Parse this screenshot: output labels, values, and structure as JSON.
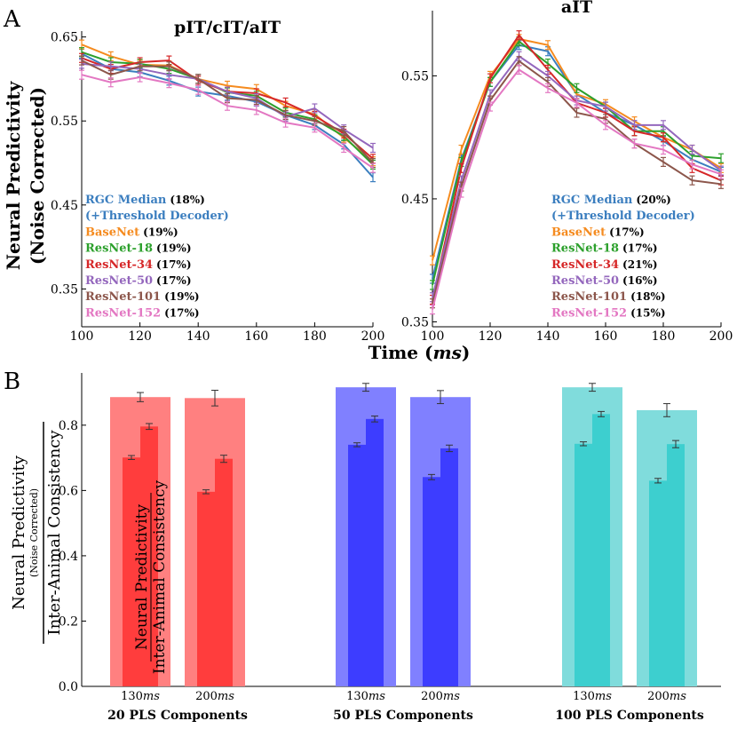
{
  "figure": {
    "panel_a_letter": "A",
    "panel_b_letter": "B",
    "panel_a_ylabel_line1": "Neural Predictivity",
    "panel_a_ylabel_line2": "(Noise Corrected)",
    "panel_a_xlabel_main": "Time (",
    "panel_a_xlabel_unit": "ms",
    "panel_a_xlabel_close": ")",
    "panel_b_ylabel_top": "Neural Predictivity",
    "panel_b_ylabel_sub": "(Noise Corrected)",
    "panel_b_ylabel_bottom": "Inter-Animal Consistency"
  },
  "colors": {
    "RGC Median": "#3b7ebf",
    "BaseNet": "#f58b1f",
    "ResNet-18": "#2ca02c",
    "ResNet-34": "#d62728",
    "ResNet-50": "#9467bd",
    "ResNet-101": "#8c564b",
    "ResNet-152": "#e377c2",
    "bar_red_light": "#ff8080",
    "bar_red_dark": "#ff3d3d",
    "bar_blue_light": "#8080ff",
    "bar_blue_dark": "#3d3dff",
    "bar_teal_light": "#80dcdc",
    "bar_teal_dark": "#3dcfcf"
  },
  "chart_data": [
    {
      "type": "line",
      "title": "pIT/cIT/aIT",
      "xlabel": "Time (ms)",
      "ylabel": "Neural Predictivity (Noise Corrected)",
      "x": [
        100,
        110,
        120,
        130,
        140,
        150,
        160,
        170,
        180,
        190,
        200
      ],
      "xlim": [
        100,
        200
      ],
      "ylim": [
        0.305,
        0.657
      ],
      "xticks": [
        "100",
        "120",
        "140",
        "160",
        "180",
        "200"
      ],
      "yticks": [
        "0.35",
        "0.45",
        "0.55",
        "0.65"
      ],
      "legend": [
        {
          "name": "RGC Median",
          "pct": "(18%)"
        },
        {
          "name": "(+Threshold Decoder)",
          "pct": ""
        },
        {
          "name": "BaseNet",
          "pct": "(19%)"
        },
        {
          "name": "ResNet-18",
          "pct": "(19%)"
        },
        {
          "name": "ResNet-34",
          "pct": "(17%)"
        },
        {
          "name": "ResNet-50",
          "pct": "(17%)"
        },
        {
          "name": "ResNet-101",
          "pct": "(19%)"
        },
        {
          "name": "ResNet-152",
          "pct": "(17%)"
        }
      ],
      "series": [
        {
          "name": "RGC Median",
          "values": [
            0.63,
            0.612,
            0.608,
            0.598,
            0.585,
            0.58,
            0.573,
            0.557,
            0.545,
            0.522,
            0.483
          ]
        },
        {
          "name": "BaseNet",
          "values": [
            0.641,
            0.627,
            0.617,
            0.616,
            0.6,
            0.592,
            0.588,
            0.568,
            0.558,
            0.53,
            0.502
          ]
        },
        {
          "name": "ResNet-18",
          "values": [
            0.632,
            0.62,
            0.618,
            0.612,
            0.6,
            0.584,
            0.58,
            0.56,
            0.552,
            0.532,
            0.498
          ]
        },
        {
          "name": "ResNet-34",
          "values": [
            0.625,
            0.612,
            0.62,
            0.622,
            0.598,
            0.585,
            0.583,
            0.572,
            0.556,
            0.535,
            0.505
          ]
        },
        {
          "name": "ResNet-50",
          "values": [
            0.618,
            0.615,
            0.612,
            0.605,
            0.6,
            0.585,
            0.577,
            0.555,
            0.565,
            0.54,
            0.518
          ]
        },
        {
          "name": "ResNet-101",
          "values": [
            0.622,
            0.605,
            0.615,
            0.615,
            0.6,
            0.577,
            0.575,
            0.557,
            0.55,
            0.538,
            0.5
          ]
        },
        {
          "name": "ResNet-152",
          "values": [
            0.605,
            0.596,
            0.602,
            0.595,
            0.587,
            0.568,
            0.563,
            0.548,
            0.542,
            0.518,
            0.494
          ]
        }
      ]
    },
    {
      "type": "line",
      "title": "aIT",
      "xlabel": "Time (ms)",
      "ylabel": "",
      "x": [
        100,
        110,
        120,
        130,
        140,
        150,
        160,
        170,
        180,
        190,
        200
      ],
      "xlim": [
        100,
        200
      ],
      "ylim": [
        0.346,
        0.603
      ],
      "xticks": [
        "100",
        "120",
        "140",
        "160",
        "180",
        "200"
      ],
      "yticks": [
        "0.35",
        "0.45",
        "0.55"
      ],
      "legend": [
        {
          "name": "RGC Median",
          "pct": "(20%)"
        },
        {
          "name": "(+Threshold Decoder)",
          "pct": ""
        },
        {
          "name": "BaseNet",
          "pct": "(17%)"
        },
        {
          "name": "ResNet-18",
          "pct": "(17%)"
        },
        {
          "name": "ResNet-34",
          "pct": "(21%)"
        },
        {
          "name": "ResNet-50",
          "pct": "(16%)"
        },
        {
          "name": "ResNet-101",
          "pct": "(18%)"
        },
        {
          "name": "ResNet-152",
          "pct": "(15%)"
        }
      ],
      "series": [
        {
          "name": "RGC Median",
          "values": [
            0.385,
            0.482,
            0.545,
            0.575,
            0.57,
            0.535,
            0.52,
            0.51,
            0.497,
            0.482,
            0.472
          ]
        },
        {
          "name": "BaseNet",
          "values": [
            0.4,
            0.49,
            0.55,
            0.58,
            0.575,
            0.535,
            0.527,
            0.513,
            0.5,
            0.49,
            0.475
          ]
        },
        {
          "name": "ResNet-18",
          "values": [
            0.38,
            0.48,
            0.545,
            0.578,
            0.56,
            0.54,
            0.525,
            0.505,
            0.505,
            0.485,
            0.483
          ]
        },
        {
          "name": "ResNet-34",
          "values": [
            0.368,
            0.475,
            0.548,
            0.583,
            0.555,
            0.528,
            0.52,
            0.505,
            0.5,
            0.475,
            0.465
          ]
        },
        {
          "name": "ResNet-50",
          "values": [
            0.37,
            0.465,
            0.535,
            0.566,
            0.55,
            0.53,
            0.525,
            0.51,
            0.51,
            0.49,
            0.473
          ]
        },
        {
          "name": "ResNet-101",
          "values": [
            0.365,
            0.46,
            0.53,
            0.562,
            0.545,
            0.52,
            0.515,
            0.495,
            0.48,
            0.465,
            0.462
          ]
        },
        {
          "name": "ResNet-152",
          "values": [
            0.36,
            0.455,
            0.525,
            0.555,
            0.54,
            0.528,
            0.51,
            0.495,
            0.49,
            0.478,
            0.47
          ]
        }
      ]
    },
    {
      "type": "bar",
      "ylabel": "Neural Predictivity (Noise Corrected) / Inter-Animal Consistency",
      "ylim": [
        0,
        0.96
      ],
      "yticks": [
        "0.0",
        "0.2",
        "0.4",
        "0.6",
        "0.8"
      ],
      "inset_label_line1": "Neural Predictivity",
      "inset_label_line2": "Inter-Animal Consistency",
      "time_unit": "ms",
      "groups": [
        {
          "label": "20 PLS Components",
          "bars": [
            {
              "time": "130",
              "consistency": 0.886,
              "consistency_err": 0.014,
              "step_low": 0.701,
              "step_low_err": 0.006,
              "step_high": 0.796,
              "step_high_err": 0.009
            },
            {
              "time": "200",
              "consistency": 0.883,
              "consistency_err": 0.024,
              "step_low": 0.596,
              "step_low_err": 0.006,
              "step_high": 0.697,
              "step_high_err": 0.011
            }
          ]
        },
        {
          "label": "50 PLS Components",
          "bars": [
            {
              "time": "130",
              "consistency": 0.916,
              "consistency_err": 0.012,
              "step_low": 0.74,
              "step_low_err": 0.006,
              "step_high": 0.819,
              "step_high_err": 0.009
            },
            {
              "time": "200",
              "consistency": 0.886,
              "consistency_err": 0.02,
              "step_low": 0.641,
              "step_low_err": 0.008,
              "step_high": 0.729,
              "step_high_err": 0.01
            }
          ]
        },
        {
          "label": "100 PLS Components",
          "bars": [
            {
              "time": "130",
              "consistency": 0.916,
              "consistency_err": 0.012,
              "step_low": 0.743,
              "step_low_err": 0.006,
              "step_high": 0.834,
              "step_high_err": 0.008
            },
            {
              "time": "200",
              "consistency": 0.846,
              "consistency_err": 0.02,
              "step_low": 0.63,
              "step_low_err": 0.007,
              "step_high": 0.742,
              "step_high_err": 0.011
            }
          ]
        }
      ]
    }
  ]
}
